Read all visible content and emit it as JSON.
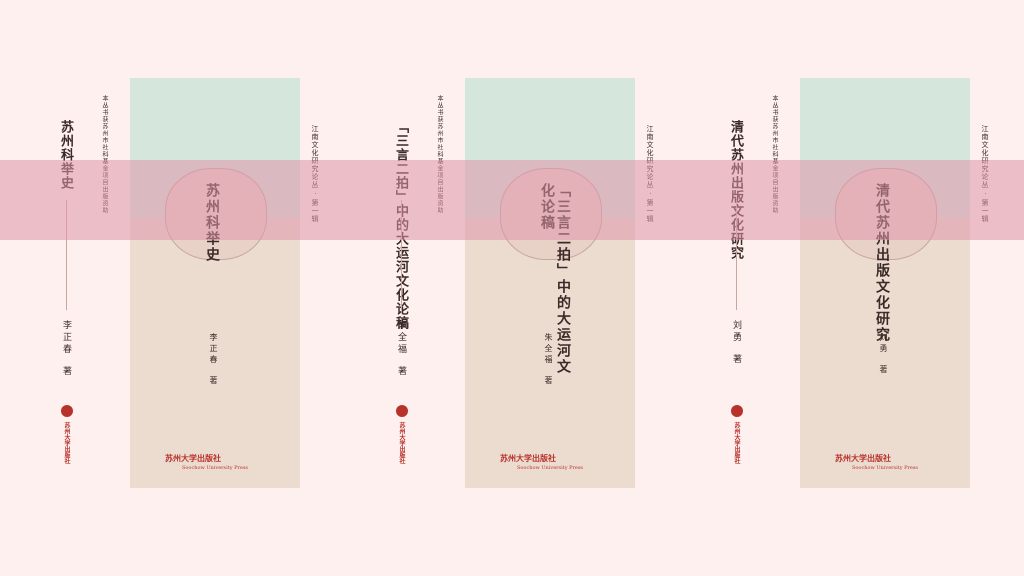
{
  "series_label": "江南文化研究论丛 · 第一辑",
  "funding_note": "本丛书获苏州市社科基金项目出版资助",
  "publisher": "苏州大学出版社",
  "publisher_en": "Soochow University Press",
  "books": [
    {
      "title": "苏州科举史",
      "author": "李正春",
      "author_suffix": "著"
    },
    {
      "title": "「三言二拍」中的大运河文化论稿",
      "author": "朱全福",
      "author_suffix": "著"
    },
    {
      "title": "清代苏州出版文化研究",
      "author": "刘勇",
      "author_suffix": "著"
    }
  ]
}
